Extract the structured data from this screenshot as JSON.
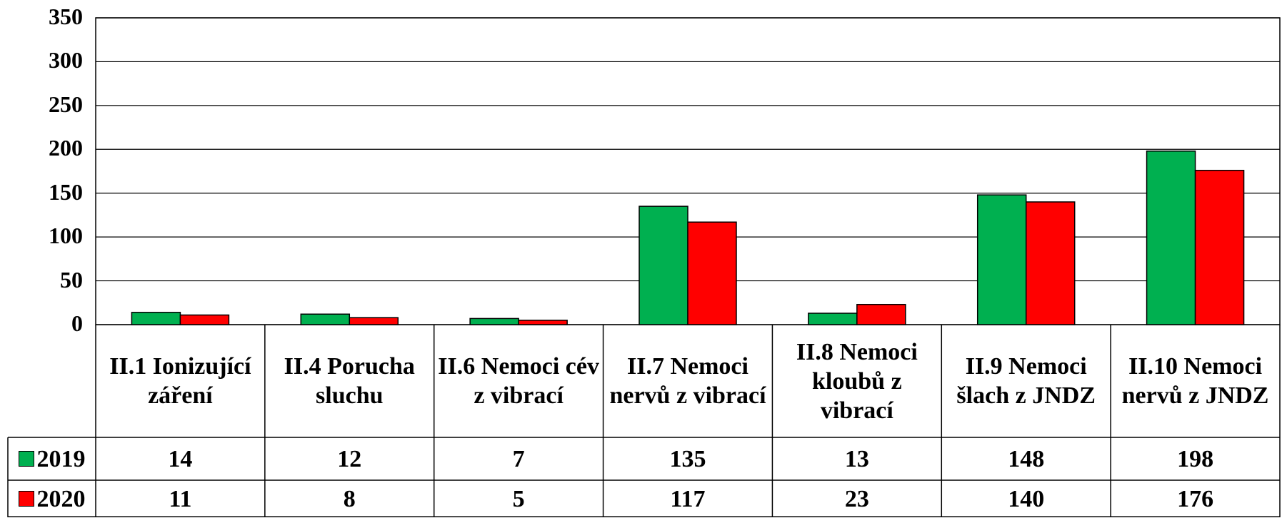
{
  "chart_data": {
    "type": "bar",
    "categories": [
      "II.1 Ionizující záření",
      "II.4 Porucha sluchu",
      "II.6 Nemoci cév z vibrací",
      "II.7 Nemoci nervů z vibrací",
      "II.8 Nemoci kloubů z vibrací",
      "II.9 Nemoci šlach z JNDZ",
      "II.10 Nemoci nervů z JNDZ"
    ],
    "series": [
      {
        "name": "2019",
        "color": "#00b050",
        "values": [
          14,
          12,
          7,
          135,
          13,
          148,
          198
        ]
      },
      {
        "name": "2020",
        "color": "#ff0000",
        "values": [
          11,
          8,
          5,
          117,
          23,
          140,
          176
        ]
      }
    ],
    "ylim": [
      0,
      350
    ],
    "yticks": [
      0,
      50,
      100,
      150,
      200,
      250,
      300,
      350
    ],
    "grid": true
  }
}
